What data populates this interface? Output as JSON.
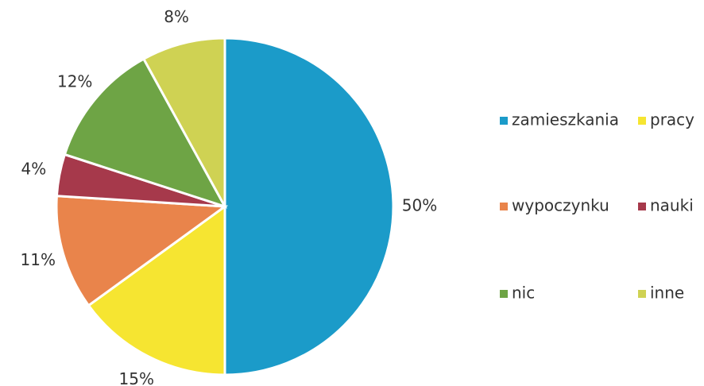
{
  "chart_data": {
    "type": "pie",
    "categories": [
      "zamieszkania",
      "pracy",
      "wypoczynku",
      "nauki",
      "nic",
      "inne"
    ],
    "values": [
      50,
      15,
      11,
      4,
      12,
      8
    ],
    "value_labels": [
      "50%",
      "15%",
      "11%",
      "4%",
      "12%",
      "8%"
    ],
    "colors": [
      "#1b9bc9",
      "#f6e531",
      "#e9844b",
      "#a6394b",
      "#6ea445",
      "#cfd253"
    ],
    "legend": "right"
  }
}
